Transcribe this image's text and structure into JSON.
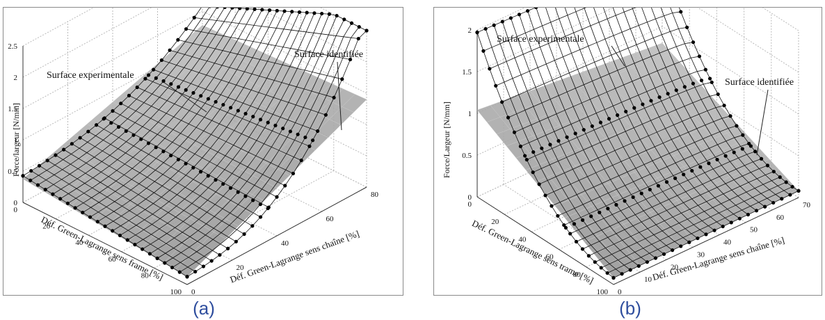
{
  "chart_data": [
    {
      "type": "surface3d",
      "caption": "(a)",
      "zlabel": "Force/largeur [N/mm]",
      "xlabel": "Déf. Green-Lagrange sens frame [%]",
      "ylabel": "Déf. Green-Lagrange sens chaîne [%]",
      "xlim": [
        0,
        100
      ],
      "ylim": [
        0,
        80
      ],
      "zlim": [
        0,
        2.5
      ],
      "x_ticks": [
        "0",
        "20",
        "40",
        "60",
        "80",
        "100"
      ],
      "y_ticks": [
        "0",
        "20",
        "40",
        "60",
        "80"
      ],
      "z_ticks": [
        "0",
        "0.5",
        "1",
        "1.5",
        "2",
        "2.5"
      ],
      "grid": true,
      "series": [
        {
          "name": "Surface experimentale",
          "style": "wireframe with dot markers",
          "color": "#111111"
        },
        {
          "name": "Surface identifiée",
          "style": "shaded surface",
          "color": "#9a9a9a"
        }
      ],
      "annotations": [
        "Surface experimentale",
        "Surface identifiée"
      ],
      "peak_z": 2.4
    },
    {
      "type": "surface3d",
      "caption": "(b)",
      "zlabel": "Force/Largeur [N/mm]",
      "xlabel": "Déf. Green-Lagrange sens trame [%]",
      "ylabel": "Déf. Green-Lagrange sens chaîne [%]",
      "xlim": [
        0,
        100
      ],
      "ylim": [
        0,
        70
      ],
      "zlim": [
        0,
        2
      ],
      "x_ticks": [
        "0",
        "20",
        "40",
        "60",
        "80",
        "100"
      ],
      "y_ticks": [
        "0",
        "10",
        "20",
        "30",
        "40",
        "50",
        "60",
        "70"
      ],
      "z_ticks": [
        "0",
        "0.5",
        "1",
        "1.5",
        "2"
      ],
      "grid": true,
      "series": [
        {
          "name": "Surface experimentale",
          "style": "wireframe with dot markers",
          "color": "#111111"
        },
        {
          "name": "Surface identifiée",
          "style": "shaded surface",
          "color": "#9a9a9a"
        }
      ],
      "annotations": [
        "Surface experimentale",
        "Surface identifiée"
      ],
      "peak_z": 1.9
    }
  ]
}
